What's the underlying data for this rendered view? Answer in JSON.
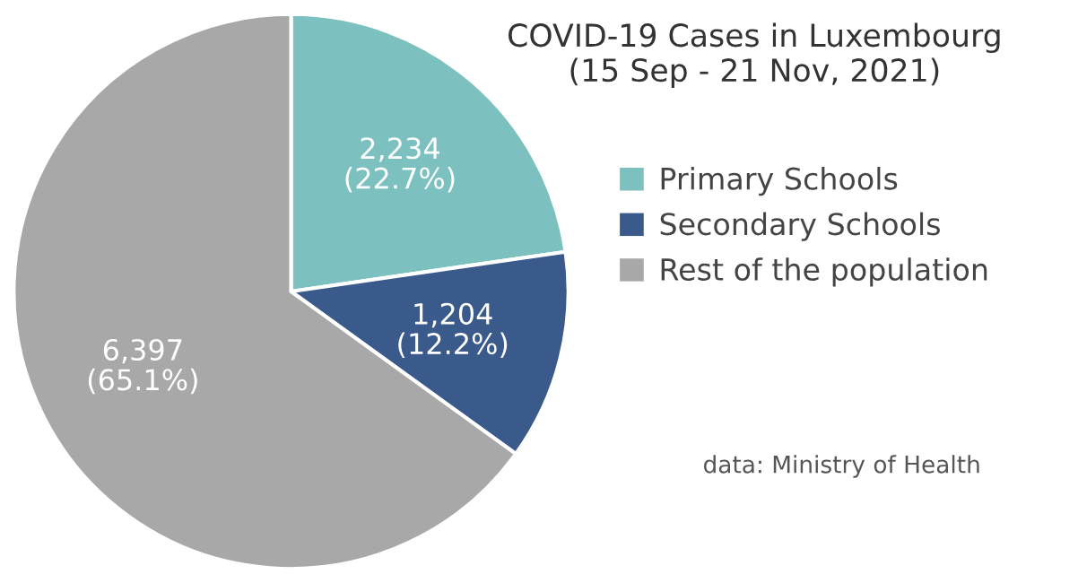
{
  "chart_data": {
    "type": "pie",
    "title": "COVID-19 Cases in Luxembourg\n(15 Sep - 21 Nov, 2021)",
    "categories": [
      "Primary Schools",
      "Secondary Schools",
      "Rest of the population"
    ],
    "values": [
      2234,
      1204,
      6397
    ],
    "colors": [
      "#7cc0c0",
      "#3a5a8c",
      "#a8a8a8"
    ],
    "value_labels": [
      "2,234\n(22.7%)",
      "1,204\n(12.2%)",
      "6,397\n(65.1%)"
    ],
    "legend": "right",
    "annotations": [
      "data: Ministry of Health"
    ]
  }
}
